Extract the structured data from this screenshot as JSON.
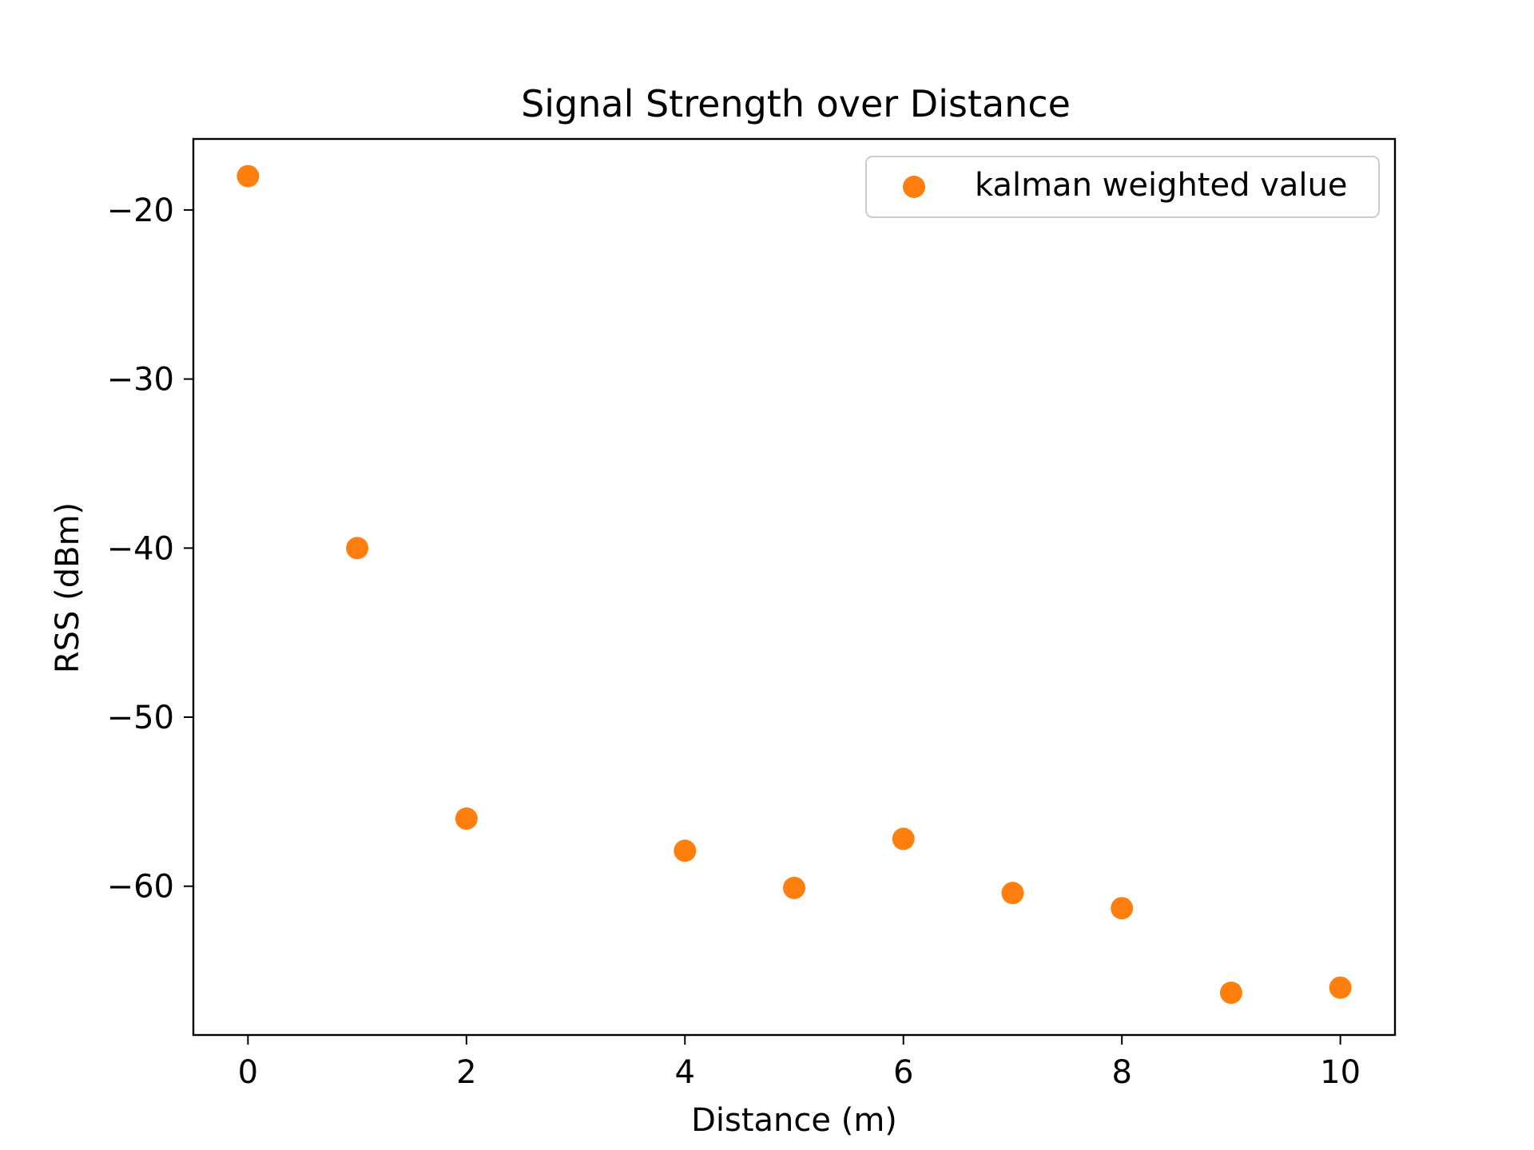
{
  "chart_data": {
    "type": "scatter",
    "title": "Signal Strength over Distance",
    "xlabel": "Distance (m)",
    "ylabel": "RSS (dBm)",
    "xlim": [
      -0.5,
      10.5
    ],
    "ylim": [
      -68.8,
      -15.8
    ],
    "xticks": [
      0,
      2,
      4,
      6,
      8,
      10
    ],
    "yticks": [
      -20,
      -30,
      -40,
      -50,
      -60
    ],
    "xtick_labels": [
      "0",
      "2",
      "4",
      "6",
      "8",
      "10"
    ],
    "ytick_labels": [
      "−20",
      "−30",
      "−40",
      "−50",
      "−60"
    ],
    "grid": false,
    "legend_position": "top-right",
    "series": [
      {
        "name": "kalman weighted value",
        "color": "#ff7f0e",
        "x": [
          0,
          1,
          2,
          4,
          5,
          6,
          7,
          8,
          9,
          10
        ],
        "y": [
          -18.0,
          -40.0,
          -56.0,
          -57.9,
          -60.1,
          -57.2,
          -60.4,
          -61.3,
          -66.3,
          -66.0
        ]
      }
    ]
  }
}
